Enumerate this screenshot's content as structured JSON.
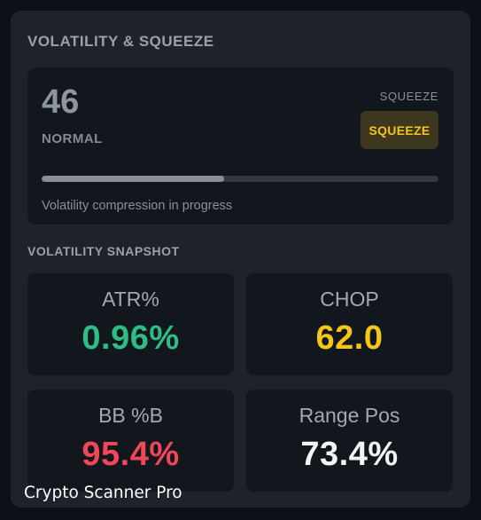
{
  "panel": {
    "title": "VOLATILITY & SQUEEZE"
  },
  "score": {
    "value": "46",
    "state": "NORMAL",
    "squeeze_label": "SQUEEZE",
    "squeeze_badge": "SQUEEZE",
    "progress_fraction": 0.46,
    "note": "Volatility compression in progress"
  },
  "snapshot": {
    "title": "VOLATILITY SNAPSHOT",
    "metrics": [
      {
        "name": "ATR%",
        "value": "0.96%",
        "color": "#2ebd85"
      },
      {
        "name": "CHOP",
        "value": "62.0",
        "color": "#f5c518"
      },
      {
        "name": "BB %B",
        "value": "95.4%",
        "color": "#f0475b"
      },
      {
        "name": "Range Pos",
        "value": "73.4%",
        "color": "#f3f4f6"
      }
    ]
  },
  "colors": {
    "squeeze_text": "#f5c518",
    "squeeze_bg": "#3d3720",
    "progress_fill": "#8a8f96",
    "panel_bg": "#1e232b",
    "card_bg": "#12161d"
  },
  "watermark": "Crypto Scanner Pro"
}
